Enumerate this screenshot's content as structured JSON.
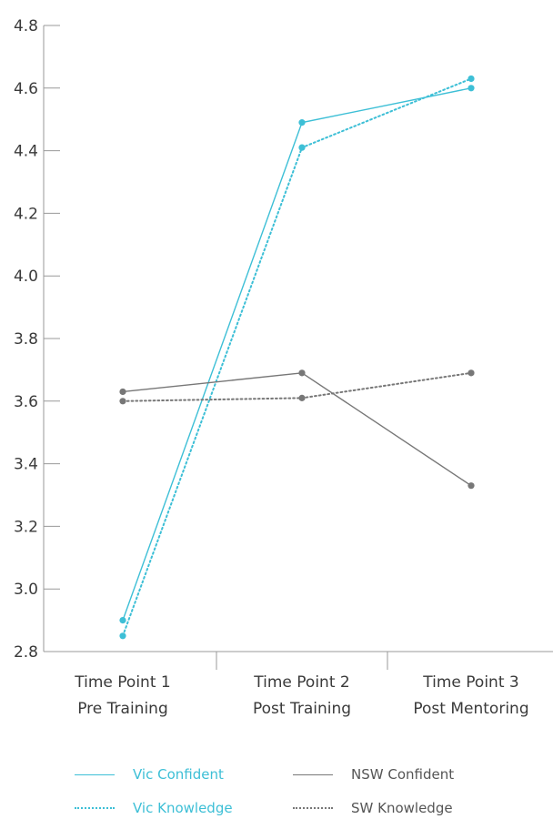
{
  "chart_data": {
    "type": "line",
    "categories": [
      [
        "Time Point 1",
        "Pre Training"
      ],
      [
        "Time Point 2",
        "Post Training"
      ],
      [
        "Time Point 3",
        "Post Mentoring"
      ]
    ],
    "ylim": [
      2.8,
      4.8
    ],
    "yticks": [
      "2.8",
      "3.0",
      "3.2",
      "3.4",
      "3.6",
      "3.8",
      "4.0",
      "4.2",
      "4.4",
      "4.6",
      "4.8"
    ],
    "series": [
      {
        "name": "Vic Confident",
        "values": [
          2.9,
          4.49,
          4.6
        ],
        "color": "#3dbfd6",
        "dash": "solid"
      },
      {
        "name": "Vic Knowledge",
        "values": [
          2.85,
          4.41,
          4.63
        ],
        "color": "#3dbfd6",
        "dash": "dotted"
      },
      {
        "name": "NSW Confident",
        "values": [
          3.63,
          3.69,
          3.33
        ],
        "color": "#777777",
        "dash": "solid"
      },
      {
        "name": "SW Knowledge",
        "values": [
          3.6,
          3.61,
          3.69
        ],
        "color": "#777777",
        "dash": "dotted"
      }
    ],
    "grid": false,
    "legend_position": "bottom"
  }
}
